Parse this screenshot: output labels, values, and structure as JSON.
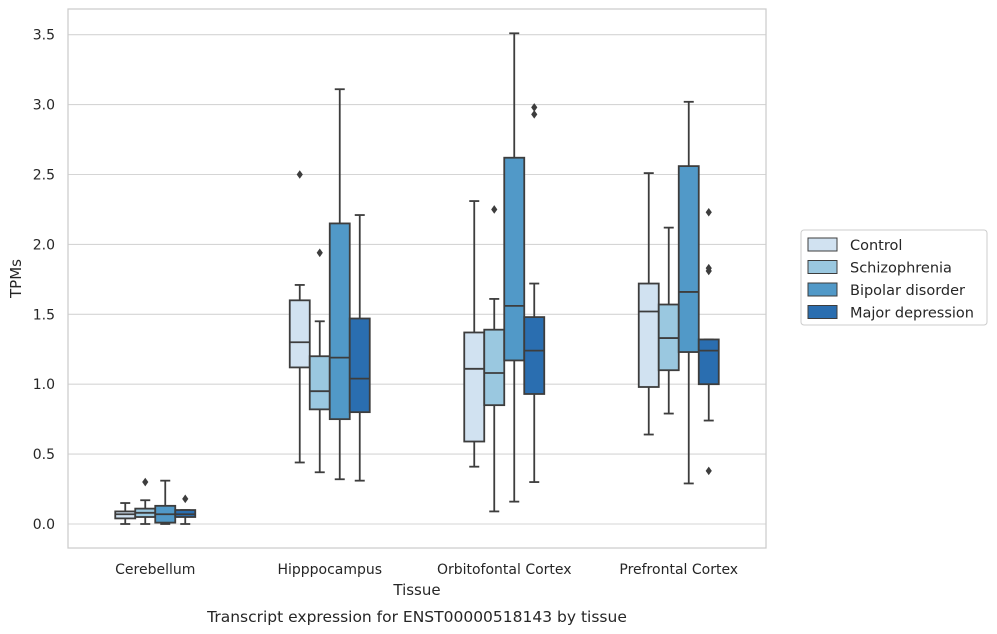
{
  "chart_data": {
    "type": "box",
    "xlabel": "Tissue",
    "ylabel": "TPMs",
    "caption": "Transcript expression for ENST00000518143 by tissue",
    "categories": [
      "Cerebellum",
      "Hipppocampus",
      "Orbitofontal Cortex",
      "Prefrontal Cortex"
    ],
    "ylim": [
      -0.17,
      3.7
    ],
    "yticks": [
      "0.0",
      "0.5",
      "1.0",
      "1.5",
      "2.0",
      "2.5",
      "3.0",
      "3.5"
    ],
    "grid": "horizontal",
    "legend_position": "outside-right",
    "series": [
      {
        "name": "Control",
        "color": "#d1e2f1",
        "boxes": [
          {
            "whislo": 0.0,
            "q1": 0.04,
            "med": 0.07,
            "q3": 0.09,
            "whishi": 0.15,
            "fliers": []
          },
          {
            "whislo": 0.44,
            "q1": 1.12,
            "med": 1.3,
            "q3": 1.6,
            "whishi": 1.71,
            "fliers": [
              2.5
            ]
          },
          {
            "whislo": 0.41,
            "q1": 0.59,
            "med": 1.11,
            "q3": 1.37,
            "whishi": 2.31,
            "fliers": []
          },
          {
            "whislo": 0.64,
            "q1": 0.98,
            "med": 1.52,
            "q3": 1.72,
            "whishi": 2.51,
            "fliers": []
          }
        ]
      },
      {
        "name": "Schizophrenia",
        "color": "#9ac8e0",
        "boxes": [
          {
            "whislo": 0.0,
            "q1": 0.05,
            "med": 0.08,
            "q3": 0.11,
            "whishi": 0.17,
            "fliers": [
              0.3
            ]
          },
          {
            "whislo": 0.37,
            "q1": 0.82,
            "med": 0.95,
            "q3": 1.2,
            "whishi": 1.45,
            "fliers": [
              1.94
            ]
          },
          {
            "whislo": 0.09,
            "q1": 0.85,
            "med": 1.08,
            "q3": 1.39,
            "whishi": 1.61,
            "fliers": [
              2.25
            ]
          },
          {
            "whislo": 0.79,
            "q1": 1.1,
            "med": 1.33,
            "q3": 1.57,
            "whishi": 2.12,
            "fliers": []
          }
        ]
      },
      {
        "name": "Bipolar disorder",
        "color": "#5199c8",
        "boxes": [
          {
            "whislo": 0.0,
            "q1": 0.01,
            "med": 0.07,
            "q3": 0.13,
            "whishi": 0.31,
            "fliers": []
          },
          {
            "whislo": 0.32,
            "q1": 0.75,
            "med": 1.19,
            "q3": 2.15,
            "whishi": 3.11,
            "fliers": []
          },
          {
            "whislo": 0.16,
            "q1": 1.17,
            "med": 1.56,
            "q3": 2.62,
            "whishi": 3.51,
            "fliers": []
          },
          {
            "whislo": 0.29,
            "q1": 1.23,
            "med": 1.66,
            "q3": 2.56,
            "whishi": 3.02,
            "fliers": []
          }
        ]
      },
      {
        "name": "Major depression",
        "color": "#2a6eb0",
        "boxes": [
          {
            "whislo": 0.0,
            "q1": 0.05,
            "med": 0.07,
            "q3": 0.1,
            "whishi": 0.1,
            "fliers": [
              0.18
            ]
          },
          {
            "whislo": 0.31,
            "q1": 0.8,
            "med": 1.04,
            "q3": 1.47,
            "whishi": 2.21,
            "fliers": []
          },
          {
            "whislo": 0.3,
            "q1": 0.93,
            "med": 1.24,
            "q3": 1.48,
            "whishi": 1.72,
            "fliers": [
              2.93,
              2.98
            ]
          },
          {
            "whislo": 0.74,
            "q1": 1.0,
            "med": 1.24,
            "q3": 1.32,
            "whishi": 1.32,
            "fliers": [
              0.38,
              1.81,
              1.83,
              2.23
            ]
          }
        ]
      }
    ]
  }
}
